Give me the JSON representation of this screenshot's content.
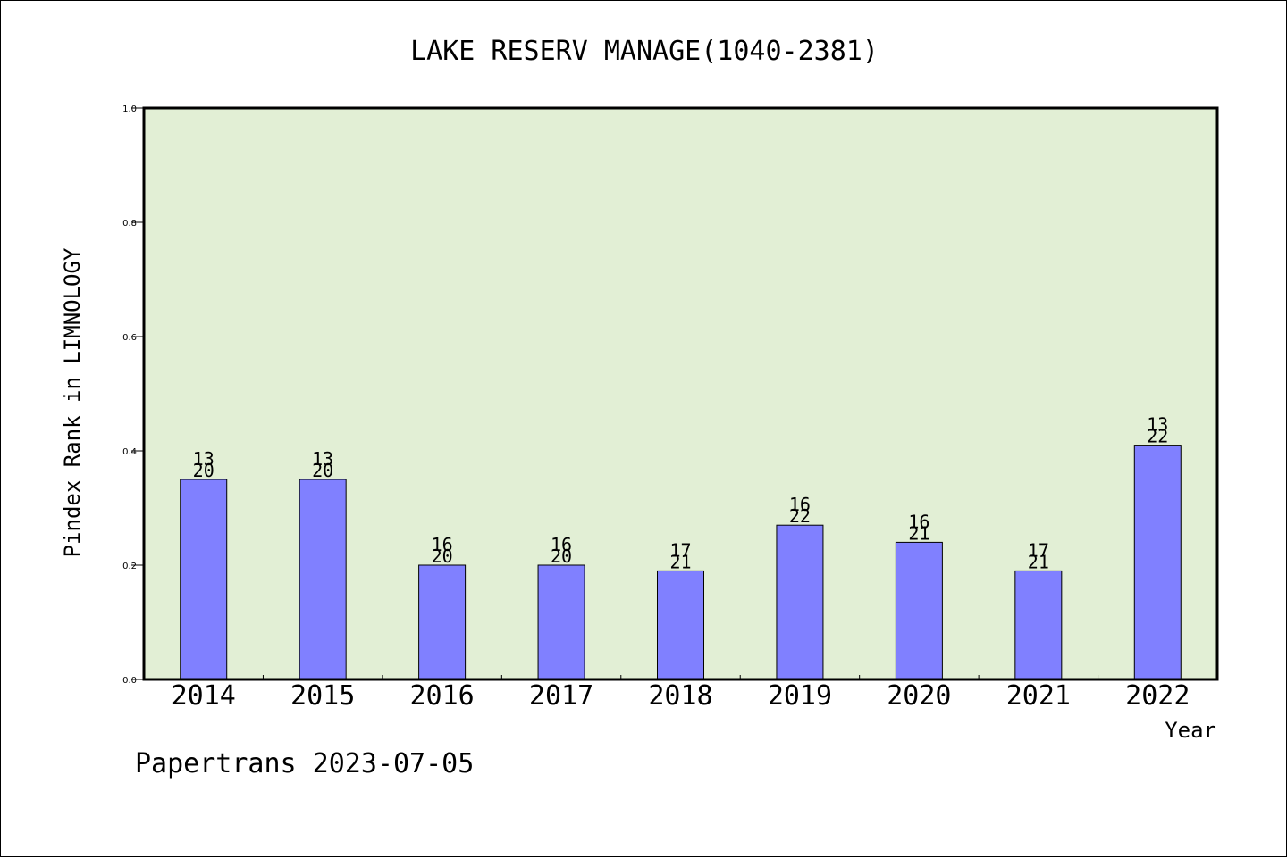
{
  "chart_data": {
    "type": "bar",
    "title": "LAKE RESERV MANAGE(1040-2381)",
    "xlabel": "Year",
    "ylabel": "Pindex Rank in LIMNOLOGY",
    "ylim": [
      0,
      1.0
    ],
    "yticks": [
      "0.0",
      "0.2",
      "0.4",
      "0.6",
      "0.8",
      "1.0"
    ],
    "categories": [
      "2014",
      "2015",
      "2016",
      "2017",
      "2018",
      "2019",
      "2020",
      "2021",
      "2022"
    ],
    "values": [
      0.35,
      0.35,
      0.2,
      0.2,
      0.19,
      0.27,
      0.24,
      0.19,
      0.41
    ],
    "labels": [
      {
        "rank": "13",
        "total": "20"
      },
      {
        "rank": "13",
        "total": "20"
      },
      {
        "rank": "16",
        "total": "20"
      },
      {
        "rank": "16",
        "total": "20"
      },
      {
        "rank": "17",
        "total": "21"
      },
      {
        "rank": "16",
        "total": "22"
      },
      {
        "rank": "16",
        "total": "21"
      },
      {
        "rank": "17",
        "total": "21"
      },
      {
        "rank": "13",
        "total": "22"
      }
    ],
    "grid": false,
    "colors": {
      "bar": "#8080ff",
      "plot_background": "#e2efd5",
      "axis": "#000000"
    }
  },
  "footer": {
    "watermark": "Papertrans 2023-07-05"
  }
}
